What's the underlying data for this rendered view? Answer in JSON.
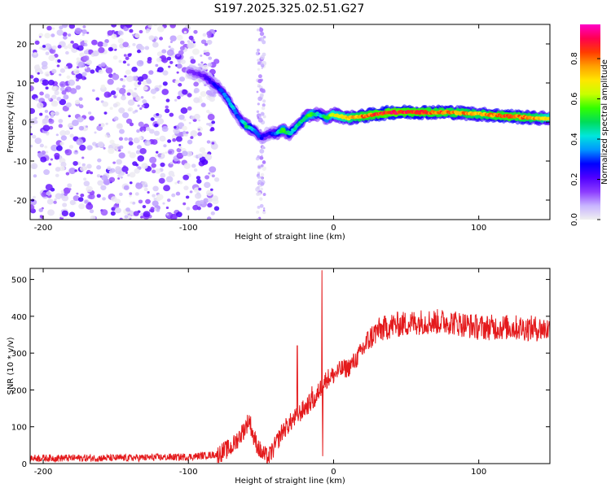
{
  "title": "S197.2025.325.02.51.G27",
  "colorbar": {
    "label": "Normalized spectral amplitude",
    "ticks": [
      0.0,
      0.2,
      0.4,
      0.6,
      0.8
    ],
    "tick_labels": [
      "0.0",
      "0.2",
      "0.4",
      "0.6",
      "0.8"
    ],
    "range": [
      0,
      0.97
    ],
    "colors": [
      "#f0f0f0",
      "#c8b4ff",
      "#8c3cff",
      "#5000ff",
      "#0000ff",
      "#0096ff",
      "#00e6dc",
      "#00dc5a",
      "#32ff00",
      "#c8ff00",
      "#ffe600",
      "#ffa000",
      "#ff3c00",
      "#ff0050",
      "#ff00c8"
    ]
  },
  "colors": {
    "snr_line": "#e41a1c",
    "axis": "#000000",
    "background": "#ffffff"
  },
  "chart_data": [
    {
      "type": "heatmap",
      "title": "S197.2025.325.02.51.G27",
      "xlabel": "Height of straight line (km)",
      "ylabel": "Frequency (Hz)",
      "xlim": [
        -209,
        149
      ],
      "ylim": [
        -25,
        25
      ],
      "x_ticks": [
        -200,
        -100,
        0,
        100
      ],
      "y_ticks": [
        -20,
        -10,
        0,
        10,
        20
      ],
      "ridge": {
        "x": [
          -100,
          -90,
          -80,
          -75,
          -70,
          -65,
          -60,
          -55,
          -50,
          -45,
          -40,
          -35,
          -30,
          -25,
          -20,
          -15,
          -10,
          -5,
          0,
          10,
          20,
          40,
          60,
          80,
          100,
          120,
          140,
          149
        ],
        "y": [
          13,
          12,
          9,
          7,
          4,
          1,
          -1,
          -2,
          -4,
          -3,
          -3,
          -2,
          -3,
          -1,
          1,
          2,
          2,
          1,
          2,
          1,
          1.5,
          2.5,
          2.5,
          2.5,
          2,
          1.5,
          1,
          1
        ],
        "amp": [
          0.15,
          0.2,
          0.3,
          0.35,
          0.45,
          0.3,
          0.55,
          0.4,
          0.3,
          0.25,
          0.35,
          0.6,
          0.45,
          0.5,
          0.5,
          0.65,
          0.4,
          0.55,
          0.7,
          0.75,
          0.85,
          0.95,
          0.9,
          0.85,
          0.8,
          0.9,
          0.8,
          0.7
        ]
      },
      "noise_region_x": [
        -209,
        -80
      ],
      "noise_streak_x": -50,
      "amplitude_range": [
        0,
        0.97
      ]
    },
    {
      "type": "line",
      "xlabel": "Height of straight line (km)",
      "ylabel": "SNR (10 * v/v)",
      "xlim": [
        -209,
        149
      ],
      "ylim": [
        0,
        530
      ],
      "x_ticks": [
        -200,
        -100,
        0,
        100
      ],
      "y_ticks": [
        0,
        100,
        200,
        300,
        400,
        500
      ],
      "series": [
        {
          "name": "SNR",
          "envelope_x": [
            -209,
            -150,
            -100,
            -80,
            -70,
            -62,
            -58,
            -55,
            -50,
            -45,
            -40,
            -35,
            -30,
            -25,
            -20,
            -15,
            -12,
            -10,
            -8,
            -5,
            0,
            5,
            10,
            15,
            20,
            25,
            30,
            40,
            60,
            80,
            100,
            120,
            149
          ],
          "envelope_y": [
            15,
            15,
            18,
            25,
            45,
            90,
            120,
            70,
            30,
            15,
            50,
            90,
            110,
            130,
            150,
            170,
            175,
            200,
            210,
            230,
            240,
            255,
            260,
            280,
            310,
            340,
            360,
            375,
            385,
            385,
            370,
            370,
            365
          ],
          "noise_amplitude": 22,
          "spikes": [
            {
              "x": -8,
              "y": 525
            },
            {
              "x": -7.5,
              "y": 20
            },
            {
              "x": -25,
              "y": 320
            },
            {
              "x": -15,
              "y": 210
            }
          ]
        }
      ]
    }
  ],
  "labels": {
    "top_xlabel": "Height of straight line (km)",
    "top_ylabel": "Frequency (Hz)",
    "bottom_xlabel": "Height of straight line (km)",
    "bottom_ylabel": "SNR (10 * v/v)",
    "top_xticks": [
      "-200",
      "-100",
      "0",
      "100"
    ],
    "top_yticks": [
      "-20",
      "-10",
      "0",
      "10",
      "20"
    ],
    "bottom_xticks": [
      "-200",
      "-100",
      "0",
      "100"
    ],
    "bottom_yticks": [
      "0",
      "100",
      "200",
      "300",
      "400",
      "500"
    ]
  }
}
